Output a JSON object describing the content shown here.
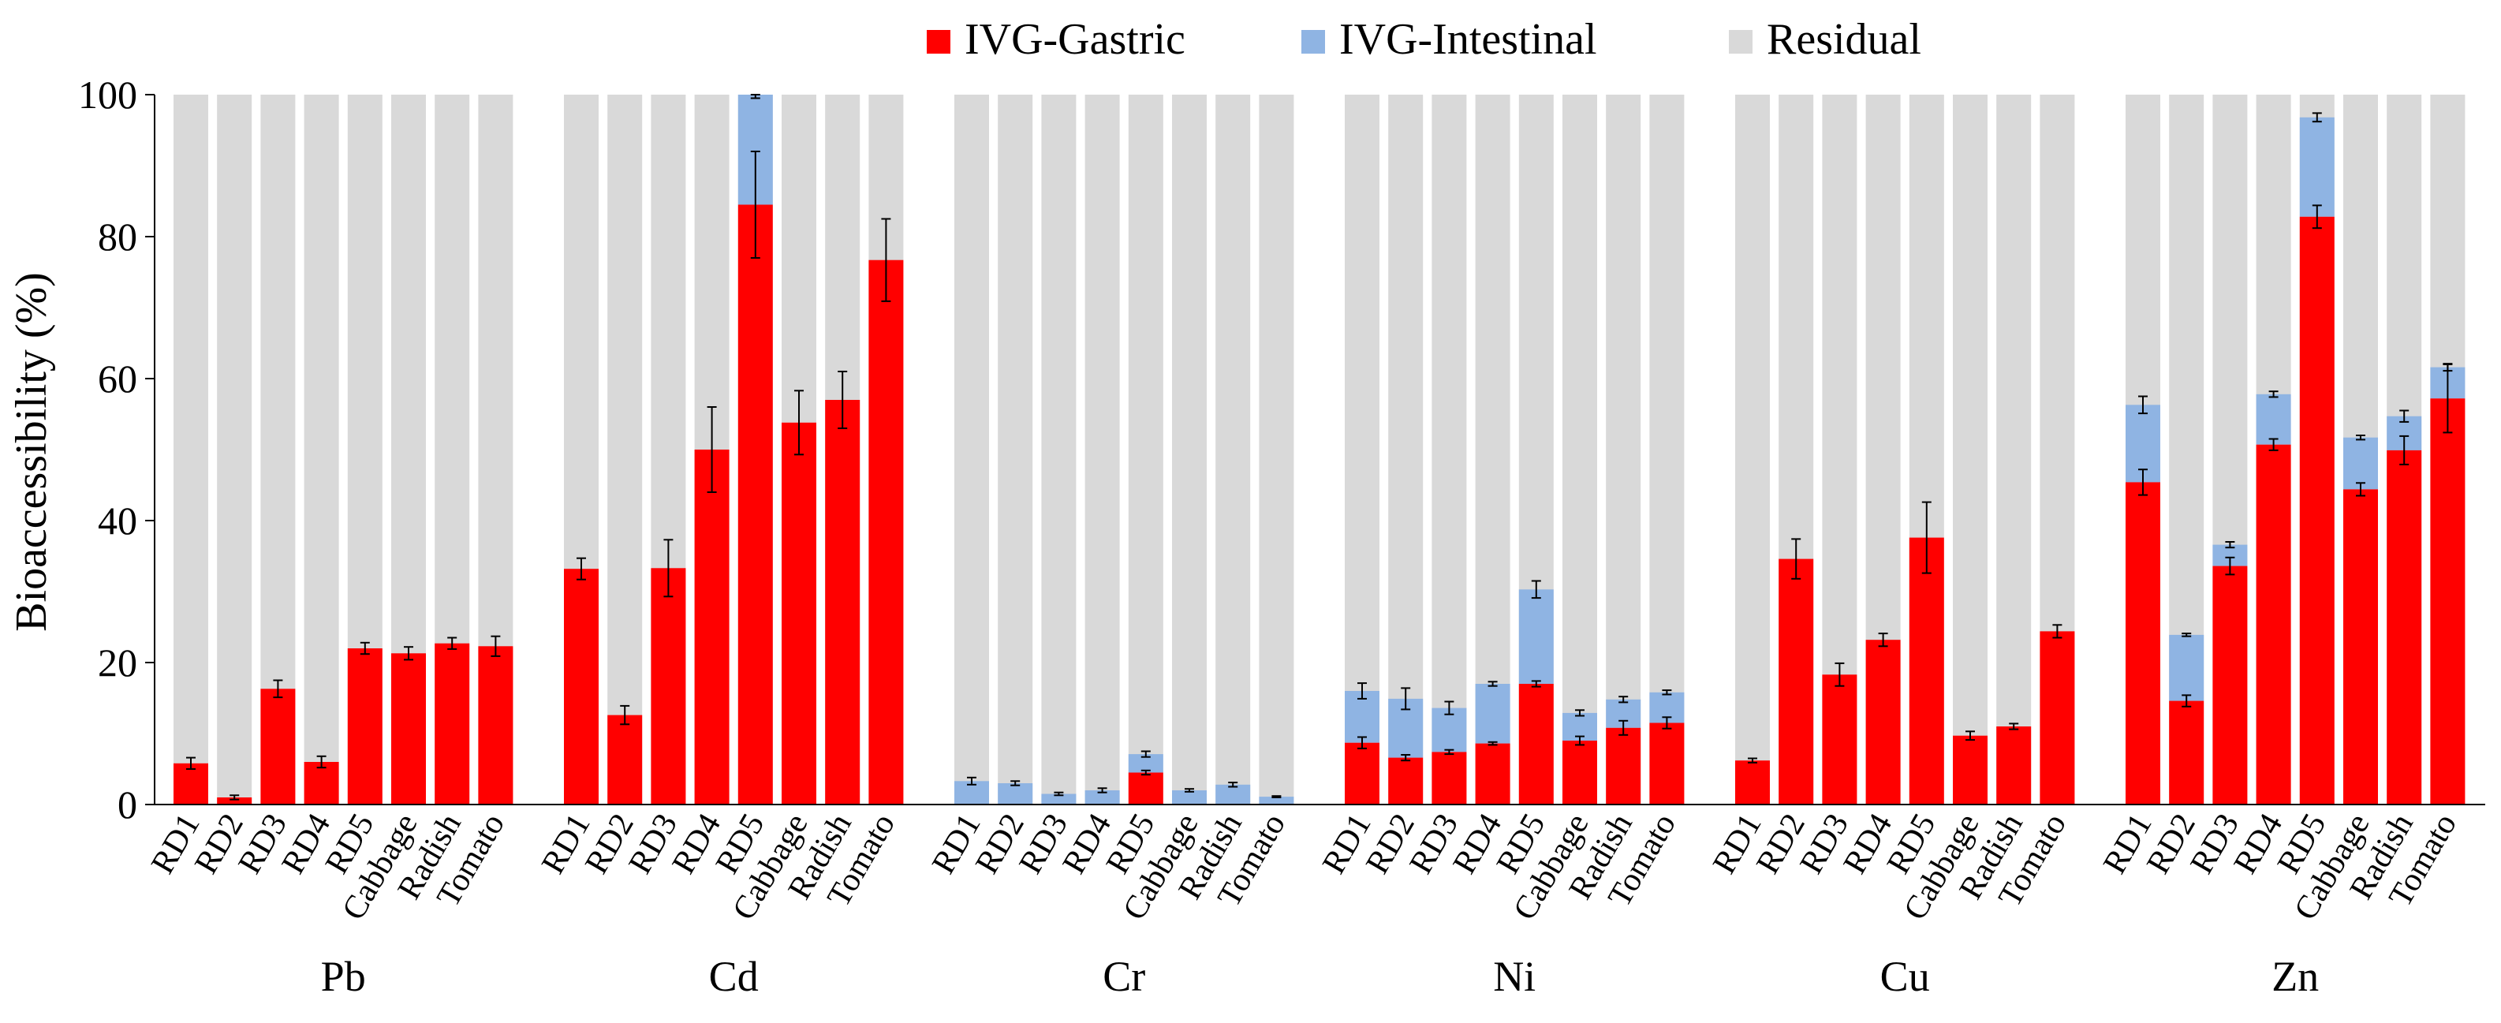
{
  "chart_data": {
    "type": "bar",
    "stacked": true,
    "ylabel": "Bioaccessibility (%)",
    "ylim": [
      0,
      100
    ],
    "yticks": [
      0,
      20,
      40,
      60,
      80,
      100
    ],
    "grid": false,
    "legend_position": "top-center",
    "colors": {
      "gastric": "#ff0000",
      "intestinal": "#8fb4e3",
      "residual": "#d9d9d9"
    },
    "series": [
      {
        "name": "IVG-Gastric",
        "color": "#ff0000"
      },
      {
        "name": "IVG-Intestinal",
        "color": "#8fb4e3"
      },
      {
        "name": "Residual",
        "color": "#d9d9d9"
      }
    ],
    "categories": [
      "RD1",
      "RD2",
      "RD3",
      "RD4",
      "RD5",
      "Cabbage",
      "Radish",
      "Tomato"
    ],
    "groups": [
      {
        "name": "Pb",
        "gastric": [
          5.8,
          1.0,
          16.3,
          6.0,
          22.0,
          21.3,
          22.7,
          22.3
        ],
        "gastric_err": [
          0.8,
          0.3,
          1.2,
          0.8,
          0.8,
          0.9,
          0.8,
          1.4
        ],
        "intestinal": [
          0,
          0,
          0,
          0,
          0,
          0,
          0,
          0
        ],
        "intestinal_err": [
          0,
          0,
          0,
          0,
          0,
          0,
          0,
          0
        ]
      },
      {
        "name": "Cd",
        "gastric": [
          33.2,
          12.6,
          33.3,
          50.0,
          84.5,
          53.8,
          57.0,
          76.7
        ],
        "gastric_err": [
          1.5,
          1.3,
          4.0,
          6.0,
          7.5,
          4.5,
          4.0,
          5.8
        ],
        "intestinal": [
          0,
          0,
          0,
          0,
          15.5,
          0,
          0,
          0
        ],
        "intestinal_err": [
          0,
          0,
          0,
          0,
          0.5,
          0,
          0,
          0
        ]
      },
      {
        "name": "Cr",
        "gastric": [
          0,
          0,
          0,
          0,
          4.5,
          0,
          0,
          0
        ],
        "gastric_err": [
          0,
          0,
          0,
          0,
          0.3,
          0,
          0,
          0
        ],
        "intestinal": [
          3.3,
          3.0,
          1.5,
          2.0,
          2.6,
          2.0,
          2.8,
          1.1
        ],
        "intestinal_err": [
          0.5,
          0.3,
          0.2,
          0.3,
          0.4,
          0.2,
          0.3,
          0.1
        ]
      },
      {
        "name": "Ni",
        "gastric": [
          8.7,
          6.6,
          7.4,
          8.6,
          17.0,
          9.0,
          10.8,
          11.5
        ],
        "gastric_err": [
          0.8,
          0.4,
          0.3,
          0.2,
          0.4,
          0.6,
          1.0,
          0.8
        ],
        "intestinal": [
          7.3,
          8.3,
          6.2,
          8.4,
          13.3,
          3.9,
          4.0,
          4.3
        ],
        "intestinal_err": [
          1.1,
          1.5,
          0.9,
          0.3,
          1.2,
          0.4,
          0.4,
          0.3
        ]
      },
      {
        "name": "Cu",
        "gastric": [
          6.2,
          34.6,
          18.3,
          23.2,
          37.6,
          9.7,
          11.0,
          24.4
        ],
        "gastric_err": [
          0.3,
          2.8,
          1.6,
          0.9,
          5.0,
          0.6,
          0.4,
          0.9
        ],
        "intestinal": [
          0,
          0,
          0,
          0,
          0,
          0,
          0,
          0
        ],
        "intestinal_err": [
          0,
          0,
          0,
          0,
          0,
          0,
          0,
          0
        ]
      },
      {
        "name": "Zn",
        "gastric": [
          45.4,
          14.6,
          33.6,
          50.7,
          82.8,
          44.4,
          49.9,
          57.2
        ],
        "gastric_err": [
          1.8,
          0.8,
          1.2,
          0.8,
          1.6,
          0.9,
          2.0,
          4.8
        ],
        "intestinal": [
          10.9,
          9.3,
          3.0,
          7.1,
          14.0,
          7.3,
          4.8,
          4.4
        ],
        "intestinal_err": [
          1.2,
          0.2,
          0.4,
          0.4,
          0.6,
          0.3,
          0.8,
          0.5
        ]
      }
    ]
  }
}
